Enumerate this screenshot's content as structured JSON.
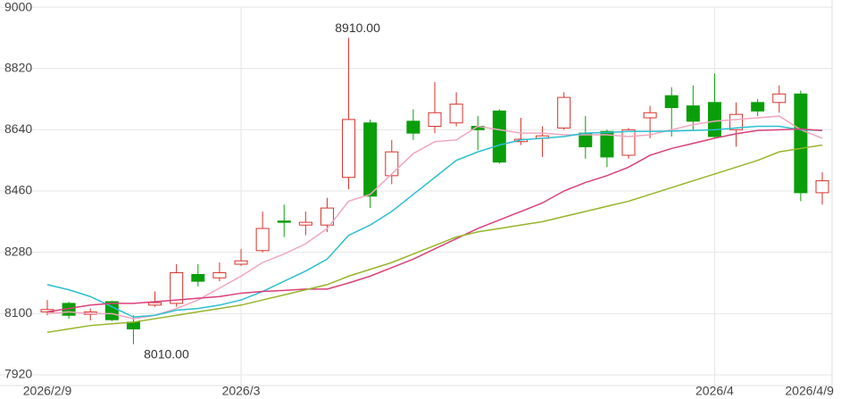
{
  "chart_data": {
    "type": "candlestick",
    "categories": [
      "2026/2/9",
      null,
      null,
      null,
      null,
      null,
      null,
      null,
      null,
      "2026/3",
      null,
      null,
      null,
      null,
      null,
      null,
      null,
      null,
      null,
      null,
      null,
      null,
      null,
      null,
      null,
      null,
      null,
      null,
      null,
      null,
      null,
      "2026/4",
      null,
      null,
      null,
      null,
      "2026/4/9"
    ],
    "open": [
      8105,
      8130,
      8098,
      8135,
      8075,
      8125,
      8130,
      8215,
      8205,
      8245,
      8285,
      8372,
      8360,
      8360,
      8500,
      8660,
      8505,
      8665,
      8650,
      8660,
      8650,
      8695,
      8605,
      8615,
      8645,
      8630,
      8635,
      8565,
      8675,
      8740,
      8710,
      8720,
      8640,
      8720,
      8720,
      8745,
      8455
    ],
    "high": [
      8140,
      8135,
      8115,
      8138,
      8095,
      8165,
      8245,
      8245,
      8250,
      8290,
      8400,
      8420,
      8400,
      8440,
      8910,
      8670,
      8610,
      8700,
      8780,
      8750,
      8680,
      8700,
      8675,
      8650,
      8750,
      8680,
      8640,
      8645,
      8710,
      8765,
      8770,
      8805,
      8720,
      8730,
      8770,
      8755,
      8515
    ],
    "low": [
      8095,
      8085,
      8080,
      8078,
      8010,
      8120,
      8120,
      8180,
      8195,
      8240,
      8280,
      8325,
      8330,
      8340,
      8465,
      8410,
      8480,
      8610,
      8630,
      8650,
      8580,
      8540,
      8595,
      8560,
      8640,
      8555,
      8530,
      8555,
      8615,
      8620,
      8640,
      8615,
      8590,
      8680,
      8690,
      8430,
      8420
    ],
    "close": [
      8112,
      8095,
      8105,
      8082,
      8055,
      8132,
      8220,
      8195,
      8220,
      8255,
      8350,
      8368,
      8368,
      8410,
      8670,
      8445,
      8575,
      8630,
      8690,
      8715,
      8640,
      8545,
      8612,
      8622,
      8735,
      8590,
      8560,
      8640,
      8690,
      8705,
      8665,
      8620,
      8685,
      8695,
      8745,
      8455,
      8490
    ],
    "up_color": "#d7322a",
    "down_color": "#0a9e0a",
    "series": [
      {
        "color": "#f0a6c0",
        "values": [
          8100,
          8105,
          8100,
          8100,
          8085,
          8095,
          8115,
          8140,
          8175,
          8210,
          8250,
          8275,
          8305,
          8350,
          8430,
          8450,
          8510,
          8570,
          8605,
          8610,
          8650,
          8640,
          8630,
          8630,
          8625,
          8625,
          8625,
          8620,
          8625,
          8640,
          8655,
          8665,
          8670,
          8675,
          8680,
          8640,
          8615
        ]
      },
      {
        "color": "#2bbfd0",
        "values": [
          8185,
          8170,
          8150,
          8120,
          8090,
          8095,
          8110,
          8115,
          8125,
          8140,
          8165,
          8195,
          8225,
          8260,
          8330,
          8360,
          8400,
          8450,
          8500,
          8550,
          8575,
          8595,
          8610,
          8615,
          8620,
          8630,
          8632,
          8635,
          8635,
          8636,
          8638,
          8640,
          8645,
          8650,
          8650,
          8640,
          8638
        ]
      },
      {
        "color": "#d9407a",
        "values": [
          8105,
          8115,
          8125,
          8130,
          8130,
          8135,
          8140,
          8145,
          8150,
          8160,
          8165,
          8168,
          8172,
          8172,
          8190,
          8210,
          8235,
          8260,
          8290,
          8320,
          8350,
          8375,
          8400,
          8425,
          8460,
          8485,
          8505,
          8530,
          8565,
          8585,
          8600,
          8615,
          8628,
          8638,
          8640,
          8642,
          8638
        ]
      },
      {
        "color": "#95b52a",
        "values": [
          8045,
          8055,
          8065,
          8070,
          8075,
          8085,
          8095,
          8105,
          8115,
          8125,
          8140,
          8155,
          8170,
          8185,
          8210,
          8230,
          8250,
          8275,
          8300,
          8325,
          8340,
          8350,
          8360,
          8370,
          8385,
          8400,
          8415,
          8430,
          8450,
          8470,
          8490,
          8510,
          8530,
          8550,
          8575,
          8585,
          8595
        ]
      }
    ],
    "annotations": [
      {
        "value": 8910,
        "label": "8910.00"
      },
      {
        "value": 8010,
        "label": "8010.00"
      }
    ],
    "ylim": [
      7920,
      9000
    ],
    "yticks": [
      7920,
      8100,
      8280,
      8460,
      8640,
      8820,
      9000
    ],
    "grid": true
  }
}
